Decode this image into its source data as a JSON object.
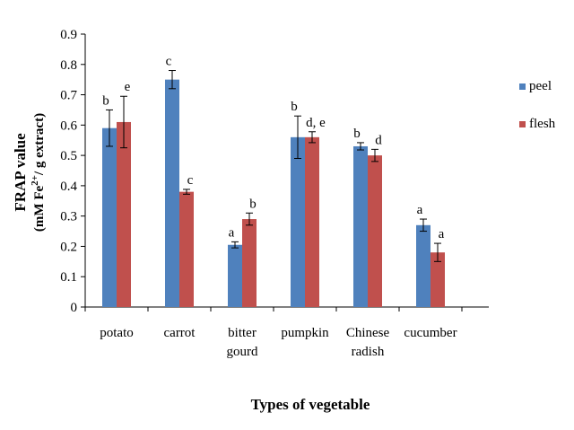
{
  "chart_data": {
    "type": "bar",
    "title": "",
    "xlabel": "Types of vegetable",
    "ylabel_line1": "FRAP value",
    "ylabel_line2": "(mM Fe2+/ g extract)",
    "ylim": [
      0,
      0.9
    ],
    "yticks": [
      "0",
      "0.1",
      "0.2",
      "0.3",
      "0.4",
      "0.5",
      "0.6",
      "0.7",
      "0.8",
      "0.9"
    ],
    "categories": [
      [
        "potato"
      ],
      [
        "carrot"
      ],
      [
        "bitter",
        "gourd"
      ],
      [
        "pumpkin"
      ],
      [
        "Chinese",
        "radish"
      ],
      [
        "cucumber"
      ]
    ],
    "series": [
      {
        "name": "peel",
        "color": "#4F81BD",
        "values": [
          0.59,
          0.75,
          0.205,
          0.56,
          0.53,
          0.27
        ],
        "errors": [
          0.06,
          0.03,
          0.01,
          0.07,
          0.012,
          0.02
        ],
        "labels": [
          "b",
          "c",
          "a",
          "b",
          "b",
          "a"
        ]
      },
      {
        "name": "flesh",
        "color": "#C0504D",
        "values": [
          0.61,
          0.38,
          0.29,
          0.56,
          0.5,
          0.18
        ],
        "errors": [
          0.085,
          0.008,
          0.02,
          0.018,
          0.02,
          0.03
        ],
        "labels": [
          "e",
          "c",
          "b",
          "d, e",
          "d",
          "a"
        ]
      }
    ],
    "legend_position": "right",
    "grid": false
  }
}
